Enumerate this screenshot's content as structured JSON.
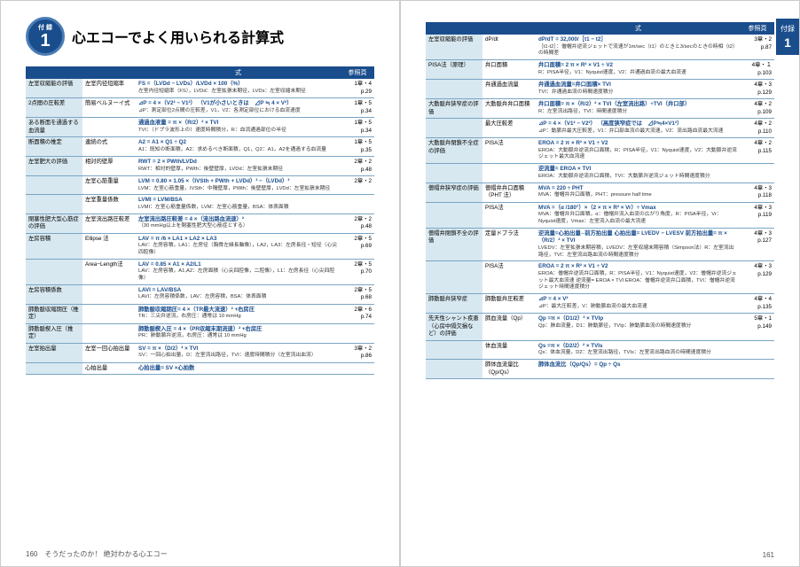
{
  "title": "心エコーでよく用いられる計算式",
  "badge_sub": "付 録",
  "badge_num": "1",
  "side_tab": "付録",
  "side_num": "1",
  "header_cell": "",
  "header_formula": "式",
  "header_ref": "参照頁",
  "footer_l": "160　そうだったのか！ 絶対わかる心エコー",
  "footer_r": "161",
  "left": [
    {
      "cat": "左室収縮能の評価",
      "sub": "左室内径短縮率",
      "f": "FS =（LVDd − LVDs）/LVDd × 100（%）",
      "n": "左室内径短縮率（FS），LVDd：左室拡張末期径，LVDs：左室収縮末期径",
      "r": "1章・4\np.29"
    },
    {
      "cat": "2点間の圧較差",
      "sub": "簡易ベルヌーイ式",
      "f": "⊿P = 4 ×（V2² − V1²）\n（V1が小さいときは　⊿P ≒ 4 × V²）",
      "n": "⊿P：測定部位2点間の圧較差，V1，V2：各測定部位における血流速度",
      "r": "1章・5\np.34"
    },
    {
      "cat": "ある断面を通過する血流量",
      "sub": "",
      "f": "通過血液量 = π ×（R/2）² × TVI",
      "n": "TVI：（ドプラ波形上の）速度時間積分，R：血流通過部位の半径",
      "r": "1章・5\np.34"
    },
    {
      "cat": "断面積の推定",
      "sub": "連続の式",
      "f": "A2 = A1 × Q1 ÷ Q2",
      "n": "A1：既知の断面積，A2：求めるべき断面積，Q1，Q2：A1，A2を通過する血流量",
      "r": "1章・5\np.35"
    },
    {
      "cat": "左室肥大の評価",
      "sub": "相対的壁厚",
      "f": "RWT = 2 × PWth/LVDd",
      "n": "RWT：相対的壁厚，PWth：後壁壁厚，LVDd：左室拡張末期径",
      "r": "2章・2\np.48"
    },
    {
      "cat": "",
      "sub": "左室心筋重量",
      "f": "LVM = 0.80 × 1.05 ×（IVSth + PWth + LVDd）³ −（LVDd）³",
      "n": "LVM：左室心筋重量，IVSth：中隔壁厚，PWth：後壁壁厚，LVDd：左室拡張末期径",
      "r": "2章・2"
    },
    {
      "cat": "",
      "sub": "左室重量係数",
      "f": "LVMI = LVM/BSA",
      "n": "LVMI：左室心筋重量係数，LVM：左室心筋重量，BSA：体表面積",
      "r": ""
    },
    {
      "cat": "閉塞性肥大型心筋症の評価",
      "sub": "左室流出路圧較差",
      "f": "左室流出路圧較差 = 4 ×（流出路血流速）²",
      "n": "（30 mmHg以上を閉塞性肥大型心筋症とする）",
      "r": "2章・2\np.48"
    },
    {
      "cat": "左房容積",
      "sub": "Ellipse 法",
      "f": "LAV = π /6 × LA1 × LA2 × LA3",
      "n": "LAV：左房容積，LA1：左房径（胸骨左縁長軸像），LA2，LA3：左房長径・短径（心尖四腔像）",
      "r": "2章・5\np.69"
    },
    {
      "cat": "",
      "sub": "Area−Length法",
      "f": "LAV = 0.85 × A1 × A2/L1",
      "n": "LAV：左房容積，A1,A2：左房面積（心尖四腔像，二腔像），L1：左房長径（心尖四腔像）",
      "r": "2章・5\np.70"
    },
    {
      "cat": "左房容積係数",
      "sub": "",
      "f": "LAVI = LAV/BSA",
      "n": "LAVI：左房容積係数，LAV：左房容積，BSA：体表面積",
      "r": "2章・5\np.68"
    },
    {
      "cat": "肺動脈収縮期圧（推定）",
      "sub": "",
      "f": "肺動脈収縮期圧= 4 ×（TR最大流速）² +右房圧",
      "n": "TR：三尖弁逆流，右房圧：通常は 10 mmHg",
      "r": "2章・6\np.74"
    },
    {
      "cat": "肺動脈楔入圧（推定）",
      "sub": "",
      "f": "肺動脈楔入圧 = 4 ×（PR収縮末期流速）² +右房圧",
      "n": "PR：肺動脈弁逆流，右房圧：通常は 10 mmHg",
      "r": ""
    },
    {
      "cat": "左室拍出量",
      "sub": "左室一回心拍出量",
      "f": "SV = π ×（D/2）² × TVI",
      "n": "SV：一回心拍出量，D：左室流出路径，TVI：速度時間積分（左室流出血流）",
      "r": "3章・2\np.86"
    },
    {
      "cat": "",
      "sub": "心拍出量",
      "f": "心拍出量= SV ×心拍数",
      "n": "",
      "r": ""
    }
  ],
  "right": [
    {
      "cat": "左室収縮能の評価",
      "sub": "dP/dt",
      "f": "dP/dT = 32,000/［t1 − t2］",
      "n": "［t1-t2］：僧帽弁逆流ジェットで流速が1m/sec（t1）のときと3/secのときの時相（t2）の時間差",
      "r": "3章・2\np.87"
    },
    {
      "cat": "PISA法（原理）",
      "sub": "弁口面積",
      "f": "弁口面積= 2 π × R² × V1 ÷ V2",
      "n": "R：PISA半径，V1：Nyquist速度，V2：弁通過血流の最大血流速",
      "r": "4章・１\np.103"
    },
    {
      "cat": "",
      "sub": "弁通過血流量",
      "f": "弁通過血流量=弁口面積× TVI",
      "n": "TVI：弁通過血流の時間速度積分",
      "r": "4章・3\np.129"
    },
    {
      "cat": "大動脈弁狭窄症の評価",
      "sub": "大動脈弁弁口面積",
      "f": "弁口面積= π ×（R/2）² × TVI（左室流出路）÷TVI（弁口部）",
      "n": "R：左室流出路径，TVI：時間速度積分",
      "r": "4章・2\np.109"
    },
    {
      "cat": "",
      "sub": "最大圧較差",
      "f": "⊿P = 4 ×（V1² − V2²）\n（高度狭窄症では　⊿P≒4×V1²）",
      "n": "⊿P：動脈弁最大圧較差，V1：弁口部血流の最大流速，V2：流出路血流最大流速",
      "r": "4章・2\np.110"
    },
    {
      "cat": "大動脈弁閉鎖不全症の評価",
      "sub": "PISA法",
      "f": "EROA = 2 π × R² × V1 ÷ V2",
      "n": "EROA：大動脈弁逆流弁口面積，R：PISA半径，V1：Nyquist速度，V2：大動脈弁逆流ジェット最大血流速",
      "r": "4章・2\np.115"
    },
    {
      "cat": "",
      "sub": "",
      "f": "逆流量= EROA × TVI",
      "n": "EROA：大動脈弁逆流弁口面積，TVI：大動脈弁逆流ジェット時間速度積分",
      "r": ""
    },
    {
      "cat": "僧帽弁狭窄症の評価",
      "sub": "僧帽弁弁口面積（PHT 法）",
      "f": "MVA = 220 ÷ PHT",
      "n": "MVA：僧帽弁弁口面積，PHT：pressure half time",
      "r": "4章・3\np.118"
    },
    {
      "cat": "",
      "sub": "PISA法",
      "f": "MVA =（α /180°）×（2 × π × R² × Vr）÷ Vmax",
      "n": "MVA：僧帽弁弁口面積，α：僧帽弁流入血流の広がり角度，R：PISA半径，Vr：Nyquist速度，Vmax：左室流入血流の最大流速",
      "r": "4章・3\np.119"
    },
    {
      "cat": "僧帽弁閉鎖不全の評価",
      "sub": "定量ドプラ法",
      "f": "逆流量=心拍出量─前方拍出量\n心拍出量= LVEDV − LVESV\n前方拍出量= π ×（R/2）² × TVI",
      "n": "LVEDV：左室拡張末期容積，LVEDV：左室収縮末期容積（Simpson法）R：左室流出路径，TVI：左室流出路血流の時間速度積分",
      "r": "4章・3\np.127"
    },
    {
      "cat": "",
      "sub": "PISA法",
      "f": "EROA = 2 π × R² × V1 ÷ V2",
      "n": "EROA：僧帽弁逆流弁口面積，R：PISA半径，V1：Nyquist速度，V2：僧帽弁逆流ジェット最大血流速\n逆流量= EROA × TVI\nEROA：僧帽弁逆流弁口面積，TVI：僧帽弁逆流ジェット時間速度積分",
      "r": "4章・3\np.129"
    },
    {
      "cat": "肺動脈弁狭窄症",
      "sub": "肺動脈弁圧較差",
      "f": "⊿P = 4 × V²",
      "n": "⊿P：最大圧較差，V：肺動脈血流の最大血流速",
      "r": "4章・4\np.135"
    },
    {
      "cat": "先天性シャント疾患（心房中隔欠損など）の評価",
      "sub": "肺血流量（Qp）",
      "f": "Qp =π ×（D1/2）² × TVIp",
      "n": "Qp：肺血流量，D1：肺動脈径，TVIp：肺動脈血流の時間速度積分",
      "r": "5章・1\np.149"
    },
    {
      "cat": "",
      "sub": "体血流量",
      "f": "Qs =π ×（D2/2）² × TVIs",
      "n": "Qs：体血流量，D2：左室流出路径，TVIs：左室流出路血流の時間速度積分",
      "r": ""
    },
    {
      "cat": "",
      "sub": "肺体血流量比（Qp/Qs）",
      "f": "肺体血流比（Qp/Qs）= Qp ÷ Qs",
      "n": "",
      "r": ""
    }
  ]
}
